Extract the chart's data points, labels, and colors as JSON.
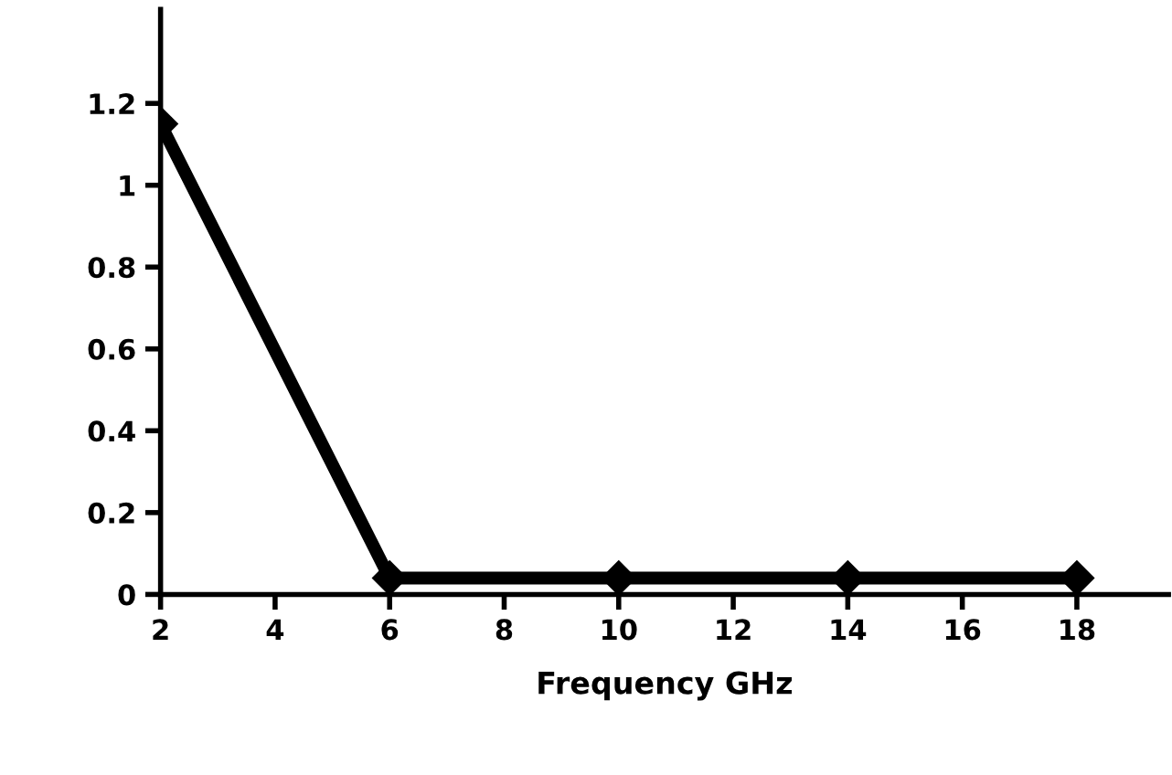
{
  "chart_data": {
    "type": "line",
    "xlabel": "Frequency GHz",
    "x": [
      2,
      6,
      10,
      14,
      18
    ],
    "series": [
      {
        "color": "#000000",
        "values": [
          1.15,
          0.04,
          0.04,
          0.04,
          0.04
        ]
      }
    ],
    "xlim": [
      2,
      19.6
    ],
    "xticks": [
      2,
      4,
      6,
      8,
      10,
      12,
      14,
      16,
      18
    ],
    "ylim": [
      0,
      1.43
    ],
    "yticks": [
      0,
      0.2,
      0.4,
      0.6,
      0.8,
      1,
      1.2
    ],
    "grid": false,
    "legend": false,
    "marker": "diamond",
    "line_style": "solid"
  }
}
